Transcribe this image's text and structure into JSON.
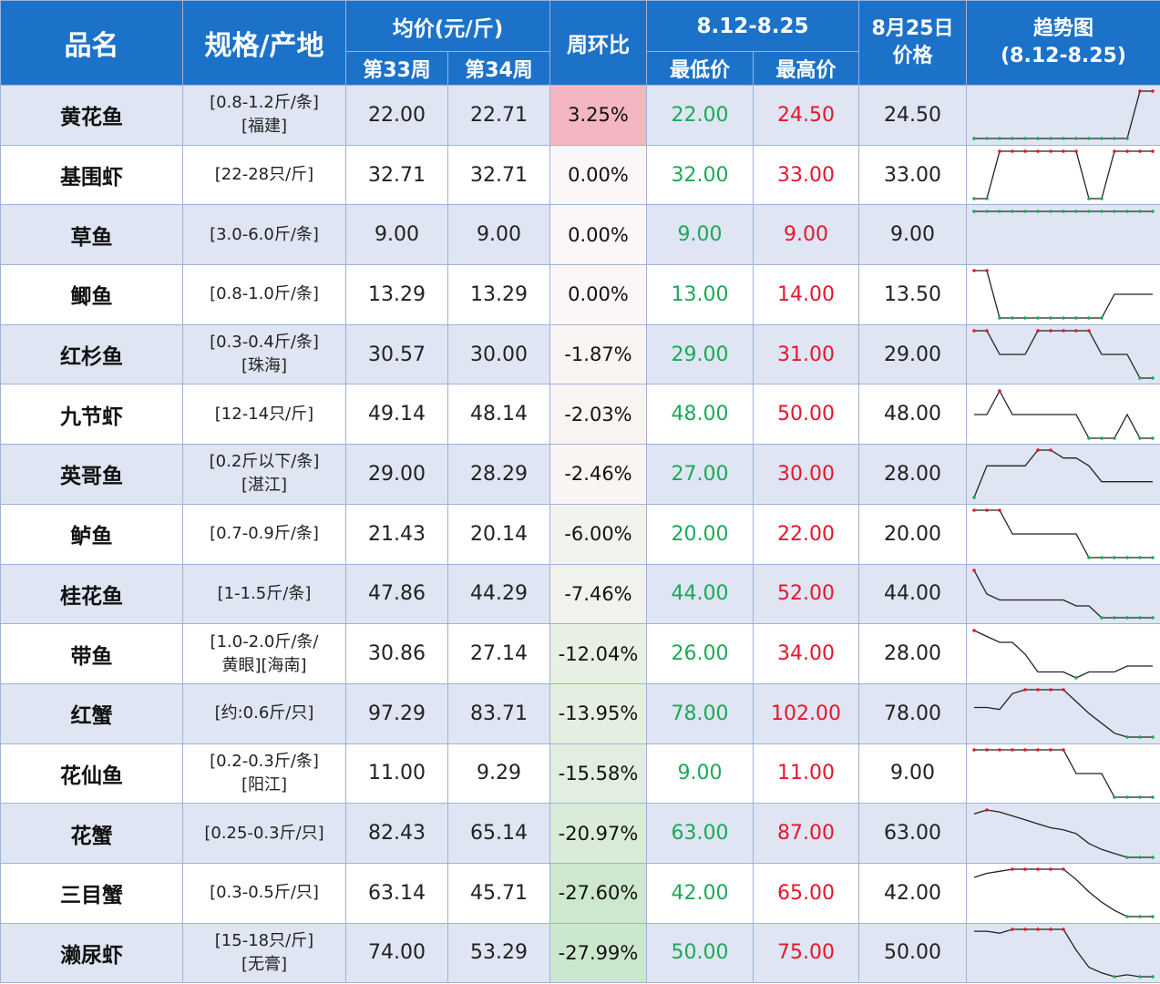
{
  "header": {
    "col_name": "品名",
    "col_spec": "规格/产地",
    "col_avg": "均价(元/斤)",
    "col_w33": "第33周",
    "col_w34": "第34周",
    "col_change": "周环比",
    "col_range": "8.12-8.25",
    "col_low": "最低价",
    "col_high": "最高价",
    "col_price_l1": "8月25日",
    "col_price_l2": "价格",
    "col_trend_l1": "趋势图",
    "col_trend_l2": "(8.12-8.25)"
  },
  "colors": {
    "header_bg": "#1c72c9",
    "row_alt_bg": "#dfe5f3",
    "low_text": "#1aaa55",
    "high_text": "#e6162d",
    "change_up": "#f4b6c0",
    "change_down_max": "#cfe8cf",
    "trend_line": "#222222",
    "trend_low_marker": "#1aaa55",
    "trend_high_marker": "#e6162d"
  },
  "rows": [
    {
      "name": "黄花鱼",
      "spec1": "[0.8-1.2斤/条]",
      "spec2": "[福建]",
      "w33": "22.00",
      "w34": "22.71",
      "change": "3.25%",
      "change_value": 3.25,
      "low": "22.00",
      "high": "24.50",
      "price": "24.50",
      "trend": [
        22,
        22,
        22,
        22,
        22,
        22,
        22,
        22,
        22,
        22,
        22,
        22,
        22,
        24.5,
        24.5
      ]
    },
    {
      "name": "基围虾",
      "spec1": "[22-28只/斤]",
      "spec2": "",
      "w33": "32.71",
      "w34": "32.71",
      "change": "0.00%",
      "change_value": 0,
      "low": "32.00",
      "high": "33.00",
      "price": "33.00",
      "trend": [
        32,
        32,
        33,
        33,
        33,
        33,
        33,
        33,
        33,
        32,
        32,
        33,
        33,
        33,
        33
      ]
    },
    {
      "name": "草鱼",
      "spec1": "[3.0-6.0斤/条]",
      "spec2": "",
      "w33": "9.00",
      "w34": "9.00",
      "change": "0.00%",
      "change_value": 0,
      "low": "9.00",
      "high": "9.00",
      "price": "9.00",
      "trend": [
        9,
        9,
        9,
        9,
        9,
        9,
        9,
        9,
        9,
        9,
        9,
        9,
        9,
        9,
        9
      ]
    },
    {
      "name": "鲫鱼",
      "spec1": "[0.8-1.0斤/条]",
      "spec2": "",
      "w33": "13.29",
      "w34": "13.29",
      "change": "0.00%",
      "change_value": 0,
      "low": "13.00",
      "high": "14.00",
      "price": "13.50",
      "trend": [
        14,
        14,
        13,
        13,
        13,
        13,
        13,
        13,
        13,
        13,
        13,
        13.5,
        13.5,
        13.5,
        13.5
      ]
    },
    {
      "name": "红杉鱼",
      "spec1": "[0.3-0.4斤/条]",
      "spec2": "[珠海]",
      "w33": "30.57",
      "w34": "30.00",
      "change": "-1.87%",
      "change_value": -1.87,
      "low": "29.00",
      "high": "31.00",
      "price": "29.00",
      "trend": [
        31,
        31,
        30,
        30,
        30,
        31,
        31,
        31,
        31,
        31,
        30,
        30,
        30,
        29,
        29
      ]
    },
    {
      "name": "九节虾",
      "spec1": "[12-14只/斤]",
      "spec2": "",
      "w33": "49.14",
      "w34": "48.14",
      "change": "-2.03%",
      "change_value": -2.03,
      "low": "48.00",
      "high": "50.00",
      "price": "48.00",
      "trend": [
        49,
        49,
        50,
        49,
        49,
        49,
        49,
        49,
        49,
        48,
        48,
        48,
        49,
        48,
        48
      ]
    },
    {
      "name": "英哥鱼",
      "spec1": "[0.2斤以下/条]",
      "spec2": "[湛江]",
      "w33": "29.00",
      "w34": "28.29",
      "change": "-2.46%",
      "change_value": -2.46,
      "low": "27.00",
      "high": "30.00",
      "price": "28.00",
      "trend": [
        27,
        29,
        29,
        29,
        29,
        30,
        30,
        29.5,
        29.5,
        29,
        28,
        28,
        28,
        28,
        28
      ]
    },
    {
      "name": "鲈鱼",
      "spec1": "[0.7-0.9斤/条]",
      "spec2": "",
      "w33": "21.43",
      "w34": "20.14",
      "change": "-6.00%",
      "change_value": -6.0,
      "low": "20.00",
      "high": "22.00",
      "price": "20.00",
      "trend": [
        22,
        22,
        22,
        21,
        21,
        21,
        21,
        21,
        21,
        20,
        20,
        20,
        20,
        20,
        20
      ]
    },
    {
      "name": "桂花鱼",
      "spec1": "[1-1.5斤/条]",
      "spec2": "",
      "w33": "47.86",
      "w34": "44.29",
      "change": "-7.46%",
      "change_value": -7.46,
      "low": "44.00",
      "high": "52.00",
      "price": "44.00",
      "trend": [
        52,
        48,
        47,
        47,
        47,
        47,
        47,
        47,
        46,
        46,
        44,
        44,
        44,
        44,
        44
      ]
    },
    {
      "name": "带鱼",
      "spec1": "[1.0-2.0斤/条/",
      "spec2": "黄眼][海南]",
      "w33": "30.86",
      "w34": "27.14",
      "change": "-12.04%",
      "change_value": -12.04,
      "low": "26.00",
      "high": "34.00",
      "price": "28.00",
      "trend": [
        34,
        33,
        32,
        32,
        30,
        27,
        27,
        27,
        26,
        27,
        27,
        27,
        28,
        28,
        28
      ]
    },
    {
      "name": "红蟹",
      "spec1": "[约:0.6斤/只]",
      "spec2": "",
      "w33": "97.29",
      "w34": "83.71",
      "change": "-13.95%",
      "change_value": -13.95,
      "low": "78.00",
      "high": "102.00",
      "price": "78.00",
      "trend": [
        93,
        93,
        92,
        100,
        102,
        102,
        102,
        102,
        96,
        90,
        85,
        80,
        78,
        78,
        78
      ]
    },
    {
      "name": "花仙鱼",
      "spec1": "[0.2-0.3斤/条]",
      "spec2": "[阳江]",
      "w33": "11.00",
      "w34": "9.29",
      "change": "-15.58%",
      "change_value": -15.58,
      "low": "9.00",
      "high": "11.00",
      "price": "9.00",
      "trend": [
        11,
        11,
        11,
        11,
        11,
        11,
        11,
        11,
        10,
        10,
        10,
        9,
        9,
        9,
        9
      ]
    },
    {
      "name": "花蟹",
      "spec1": "[0.25-0.3斤/只]",
      "spec2": "",
      "w33": "82.43",
      "w34": "65.14",
      "change": "-20.97%",
      "change_value": -20.97,
      "low": "63.00",
      "high": "87.00",
      "price": "63.00",
      "trend": [
        85,
        87,
        86,
        84,
        82,
        80,
        78,
        77,
        75,
        70,
        67,
        65,
        63,
        63,
        63
      ]
    },
    {
      "name": "三目蟹",
      "spec1": "[0.3-0.5斤/只]",
      "spec2": "",
      "w33": "63.14",
      "w34": "45.71",
      "change": "-27.60%",
      "change_value": -27.6,
      "low": "42.00",
      "high": "65.00",
      "price": "42.00",
      "trend": [
        61,
        63,
        64,
        65,
        65,
        65,
        65,
        65,
        60,
        54,
        49,
        45,
        42,
        42,
        42
      ]
    },
    {
      "name": "濑尿虾",
      "spec1": "[15-18只/斤]",
      "spec2": "[无膏]",
      "w33": "74.00",
      "w34": "53.29",
      "change": "-27.99%",
      "change_value": -27.99,
      "low": "50.00",
      "high": "75.00",
      "price": "50.00",
      "trend": [
        74,
        74,
        73,
        75,
        75,
        75,
        75,
        75,
        64,
        55,
        52,
        50,
        51,
        50,
        50
      ]
    }
  ]
}
